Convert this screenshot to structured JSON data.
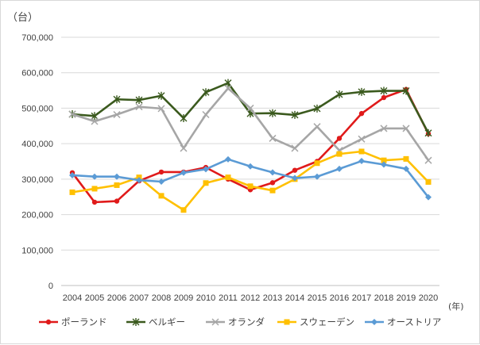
{
  "chart_data": {
    "type": "line",
    "y_unit_label": "（台）",
    "x_unit_label": "(年)",
    "ylim": [
      0,
      700000
    ],
    "yticks": [
      0,
      100000,
      200000,
      300000,
      400000,
      500000,
      600000,
      700000
    ],
    "ytick_labels": [
      "0",
      "100,000",
      "200,000",
      "300,000",
      "400,000",
      "500,000",
      "600,000",
      "700,000"
    ],
    "grid": true,
    "legend_position": "bottom",
    "x": [
      "2004",
      "2005",
      "2006",
      "2007",
      "2008",
      "2009",
      "2010",
      "2011",
      "2012",
      "2013",
      "2014",
      "2015",
      "2016",
      "2017",
      "2018",
      "2019",
      "2020"
    ],
    "series": [
      {
        "name": "ポーランド",
        "color": "#e01a1a",
        "marker": "circle",
        "values": [
          318000,
          235000,
          238000,
          295000,
          320000,
          320000,
          333000,
          300000,
          270000,
          290000,
          325000,
          350000,
          415000,
          485000,
          530000,
          553000,
          428000
        ]
      },
      {
        "name": "ベルギー",
        "color": "#3b5a1e",
        "marker": "star",
        "values": [
          483000,
          478000,
          525000,
          523000,
          535000,
          472000,
          545000,
          571000,
          485000,
          486000,
          481000,
          499000,
          539000,
          546000,
          549000,
          549000,
          430000
        ]
      },
      {
        "name": "オランダ",
        "color": "#a6a6a6",
        "marker": "x",
        "values": [
          483000,
          463000,
          482000,
          504000,
          499000,
          387000,
          482000,
          556000,
          500000,
          415000,
          387000,
          448000,
          381000,
          413000,
          443000,
          443000,
          353000
        ]
      },
      {
        "name": "スウェーデン",
        "color": "#ffc000",
        "marker": "square",
        "values": [
          263000,
          273000,
          283000,
          305000,
          253000,
          213000,
          289000,
          305000,
          280000,
          268000,
          300000,
          345000,
          371000,
          378000,
          353000,
          357000,
          292000
        ]
      },
      {
        "name": "オーストリア",
        "color": "#5b9bd5",
        "marker": "diamond",
        "values": [
          311000,
          307000,
          307000,
          297000,
          293000,
          318000,
          328000,
          356000,
          336000,
          319000,
          303000,
          307000,
          329000,
          351000,
          341000,
          329000,
          249000
        ]
      }
    ]
  }
}
